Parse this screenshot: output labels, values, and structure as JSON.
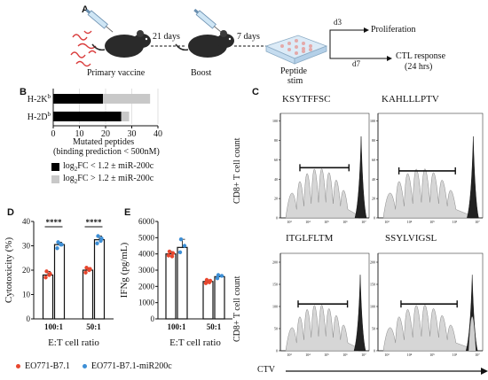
{
  "panel_a": {
    "letter": "A",
    "primary_label": "Primary vaccine",
    "interval1": "21 days",
    "boost_label": "Boost",
    "interval2": "7 days",
    "stim_label_1": "Peptide",
    "stim_label_2": "stim",
    "d3": "d3",
    "d7": "d7",
    "prolif": "Proliferation",
    "ctl_1": "CTL response",
    "ctl_2": "(24 hrs)"
  },
  "panel_b": {
    "letter": "B",
    "xlabel_1": "Mutated peptides",
    "xlabel_2": "(binding prediction < 500nM)",
    "legend": [
      {
        "prefix": "log",
        "sub": "2",
        "text": "FC < 1.2 ± miR-200c",
        "color": "#000000"
      },
      {
        "prefix": "log",
        "sub": "2",
        "text": "FC > 1.2 ± miR-200c",
        "color": "#c8c8c8"
      }
    ]
  },
  "panel_c": {
    "letter": "C",
    "ylabel": "CD8+ T cell count",
    "xlabel": "CTV",
    "peptides": [
      "KSYTFFSC",
      "KAHLLLPTV",
      "ITGLFLTM",
      "SSYLVIGSL"
    ]
  },
  "panel_d": {
    "letter": "D",
    "sig": "****"
  },
  "panel_e": {
    "letter": "E"
  },
  "legend": {
    "items": [
      {
        "label": "EO771-B7.1",
        "color": "#e8472e"
      },
      {
        "label": "EO771-B7.1-miR200c",
        "color": "#3d8fd6"
      }
    ]
  },
  "chart_data": [
    {
      "type": "bar",
      "orientation": "horizontal",
      "categories": [
        "H-2Kb",
        "H-2Db"
      ],
      "category_labels": [
        {
          "main": "H-2K",
          "sup": "b"
        },
        {
          "main": "H-2D",
          "sup": "b"
        }
      ],
      "series": [
        {
          "name": "log2FC < 1.2 ± miR-200c",
          "values": [
            19,
            26
          ],
          "color": "#000000"
        },
        {
          "name": "log2FC > 1.2 ± miR-200c",
          "values": [
            18,
            3
          ],
          "color": "#c8c8c8"
        }
      ],
      "stacked": true,
      "xlim": [
        0,
        40
      ],
      "xticks": [
        0,
        10,
        20,
        30,
        40
      ],
      "xlabel": "Mutated peptides (binding prediction < 500nM)"
    },
    {
      "type": "bar",
      "categories": [
        "100:1",
        "50:1"
      ],
      "series": [
        {
          "name": "EO771-B7.1",
          "values": [
            18,
            20
          ],
          "points": [
            [
              17,
              18.5,
              19.5,
              18
            ],
            [
              19,
              20.5,
              21,
              20
            ]
          ]
        },
        {
          "name": "EO771-B7.1-miR200c",
          "values": [
            30.5,
            32.5
          ],
          "points": [
            [
              29,
              30.5,
              31.5,
              30.5
            ],
            [
              31,
              33,
              34,
              32
            ]
          ]
        }
      ],
      "ylabel": "Cytotoxicity (%)",
      "xlabel": "E:T cell ratio",
      "ylim": [
        0,
        40
      ],
      "yticks": [
        0,
        10,
        20,
        30,
        40
      ],
      "significance": [
        "****",
        "****"
      ]
    },
    {
      "type": "bar",
      "categories": [
        "100:1",
        "50:1"
      ],
      "series": [
        {
          "name": "EO771-B7.1",
          "values": [
            4000,
            2300
          ],
          "points": [
            [
              3900,
              4050,
              4150,
              3850
            ],
            [
              2200,
              2350,
              2400,
              2250
            ]
          ]
        },
        {
          "name": "EO771-B7.1-miR200c",
          "values": [
            4400,
            2600
          ],
          "points": [
            [
              4100,
              4500,
              4900
            ],
            [
              2500,
              2650,
              2700
            ]
          ]
        }
      ],
      "ylabel": "IFNg (pg/mL)",
      "xlabel": "E:T cell ratio",
      "ylim": [
        0,
        6000
      ],
      "yticks": [
        0,
        1000,
        2000,
        3000,
        4000,
        5000,
        6000
      ]
    }
  ]
}
